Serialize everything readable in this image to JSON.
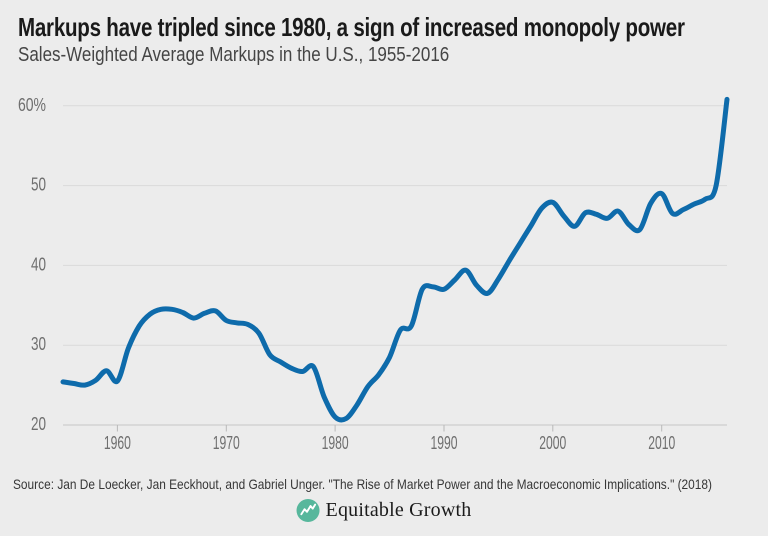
{
  "header": {
    "title": "Markups have tripled since 1980, a sign of increased monopoly power",
    "subtitle": "Sales-Weighted Average Markups in the U.S., 1955-2016"
  },
  "footer": {
    "source": "Source: Jan De Loecker, Jan Eeckhout, and Gabriel Unger. \"The Rise of Market Power and the Macroeconomic Implications.\" (2018)",
    "logo_text": "Equitable Growth",
    "logo_icon": "line-chart-zigzag-in-circle",
    "logo_color": "#57b79c"
  },
  "chart_data": {
    "type": "line",
    "title": "Markups have tripled since 1980, a sign of increased monopoly power",
    "subtitle": "Sales-Weighted Average Markups in the U.S., 1955-2016",
    "series_name": "Sales-weighted average markup (%)",
    "x": [
      1955,
      1956,
      1957,
      1958,
      1959,
      1960,
      1961,
      1962,
      1963,
      1964,
      1965,
      1966,
      1967,
      1968,
      1969,
      1970,
      1971,
      1972,
      1973,
      1974,
      1975,
      1976,
      1977,
      1978,
      1979,
      1980,
      1981,
      1982,
      1983,
      1984,
      1985,
      1986,
      1987,
      1988,
      1989,
      1990,
      1991,
      1992,
      1993,
      1994,
      1995,
      1996,
      1997,
      1998,
      1999,
      2000,
      2001,
      2002,
      2003,
      2004,
      2005,
      2006,
      2007,
      2008,
      2009,
      2010,
      2011,
      2012,
      2013,
      2014,
      2015,
      2016
    ],
    "values": [
      25.4,
      25.2,
      25.0,
      25.6,
      26.8,
      25.5,
      29.6,
      32.4,
      33.9,
      34.5,
      34.5,
      34.1,
      33.4,
      34.0,
      34.3,
      33.1,
      32.8,
      32.6,
      31.5,
      28.8,
      27.9,
      27.1,
      26.7,
      27.3,
      23.5,
      21.0,
      20.8,
      22.5,
      24.8,
      26.3,
      28.5,
      31.9,
      32.4,
      37.0,
      37.3,
      37.0,
      38.2,
      39.4,
      37.5,
      36.5,
      38.3,
      40.6,
      42.8,
      45.0,
      47.2,
      47.9,
      46.2,
      44.9,
      46.6,
      46.4,
      45.9,
      46.8,
      45.1,
      44.5,
      47.8,
      49.0,
      46.5,
      47.0,
      47.7,
      48.3,
      50.0,
      60.8
    ],
    "xlabel": "",
    "ylabel": "",
    "xlim": [
      1955,
      2016
    ],
    "ylim": [
      20,
      60
    ],
    "xtick_values": [
      1960,
      1970,
      1980,
      1990,
      2000,
      2010
    ],
    "xtick_labels": [
      "1960",
      "1970",
      "1980",
      "1990",
      "2000",
      "2010"
    ],
    "ytick_values": [
      60,
      50,
      40,
      30,
      20
    ],
    "ytick_labels": [
      "60%",
      "50",
      "40",
      "30",
      "20"
    ],
    "grid": "horizontal",
    "legend_position": "none",
    "line_color": "#0e6bab",
    "gridline_color": "#dadada",
    "axis_line_color": "#c6c6c6",
    "tick_color": "#b9b9b9",
    "tick_label_color": "#6f6f6f",
    "background": "#ececec"
  }
}
